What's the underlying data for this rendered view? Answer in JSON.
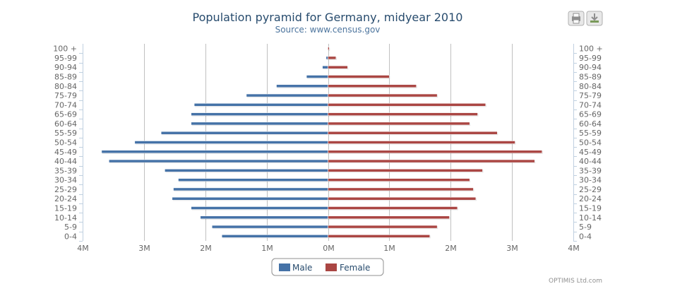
{
  "chart_data": {
    "type": "bar",
    "orientation": "horizontal-butterfly",
    "title": "Population pyramid for Germany, midyear 2010",
    "subtitle": "Source: www.census.gov",
    "categories": [
      "0-4",
      "5-9",
      "10-14",
      "15-19",
      "20-24",
      "25-29",
      "30-34",
      "35-39",
      "40-44",
      "45-49",
      "50-54",
      "55-59",
      "60-64",
      "65-69",
      "70-74",
      "75-79",
      "80-84",
      "85-89",
      "90-94",
      "95-99",
      "100 +"
    ],
    "series": [
      {
        "name": "Male",
        "color": "#4572a7",
        "values": [
          1.73,
          1.89,
          2.08,
          2.23,
          2.54,
          2.52,
          2.44,
          2.66,
          3.57,
          3.69,
          3.15,
          2.72,
          2.23,
          2.23,
          2.18,
          1.33,
          0.84,
          0.35,
          0.09,
          0.03,
          0.004
        ]
      },
      {
        "name": "Female",
        "color": "#aa4643",
        "values": [
          1.66,
          1.78,
          1.98,
          2.11,
          2.41,
          2.37,
          2.31,
          2.52,
          3.37,
          3.49,
          3.05,
          2.76,
          2.31,
          2.44,
          2.57,
          1.78,
          1.44,
          1.0,
          0.32,
          0.13,
          0.02
        ]
      }
    ],
    "xlim": [
      -4,
      4
    ],
    "xticks": [
      -4,
      -3,
      -2,
      -1,
      0,
      1,
      2,
      3,
      4
    ],
    "xtick_labels": [
      "4M",
      "3M",
      "2M",
      "1M",
      "0M",
      "1M",
      "2M",
      "3M",
      "4M"
    ],
    "units": "millions",
    "grid": true,
    "legend_position": "bottom-center"
  },
  "credits": "OPTIMIS Ltd.com",
  "toolbar": {
    "print_icon": "printer-icon",
    "download_icon": "download-icon"
  }
}
